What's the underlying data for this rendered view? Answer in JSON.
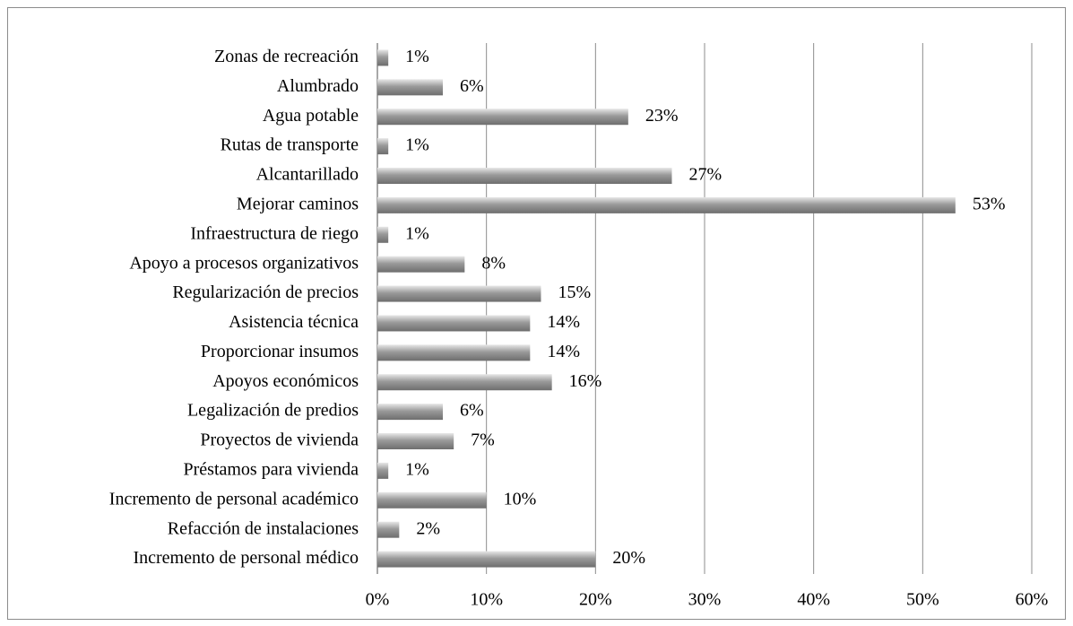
{
  "chart_data": {
    "type": "bar",
    "orientation": "horizontal",
    "categories": [
      "Zonas de recreación",
      "Alumbrado",
      "Agua potable",
      "Rutas de transporte",
      "Alcantarillado",
      "Mejorar caminos",
      "Infraestructura de riego",
      "Apoyo a procesos organizativos",
      "Regularización de precios",
      "Asistencia técnica",
      "Proporcionar insumos",
      "Apoyos económicos",
      "Legalización de predios",
      "Proyectos de vivienda",
      "Préstamos para vivienda",
      "Incremento de personal académico",
      "Refacción de instalaciones",
      "Incremento de personal médico"
    ],
    "values": [
      1,
      6,
      23,
      1,
      27,
      53,
      1,
      8,
      15,
      14,
      14,
      16,
      6,
      7,
      1,
      10,
      2,
      20
    ],
    "value_labels": [
      "1%",
      "6%",
      "23%",
      "1%",
      "27%",
      "53%",
      "1%",
      "8%",
      "15%",
      "14%",
      "14%",
      "16%",
      "6%",
      "7%",
      "1%",
      "10%",
      "2%",
      "20%"
    ],
    "color": "#9a9a9a",
    "xlim": [
      0,
      60
    ],
    "xticks": [
      {
        "value": 0,
        "label": "0%"
      },
      {
        "value": 10,
        "label": "10%"
      },
      {
        "value": 20,
        "label": "20%"
      },
      {
        "value": 30,
        "label": "30%"
      },
      {
        "value": 40,
        "label": "40%"
      },
      {
        "value": 50,
        "label": "50%"
      },
      {
        "value": 60,
        "label": "60%"
      }
    ],
    "grid": true
  }
}
